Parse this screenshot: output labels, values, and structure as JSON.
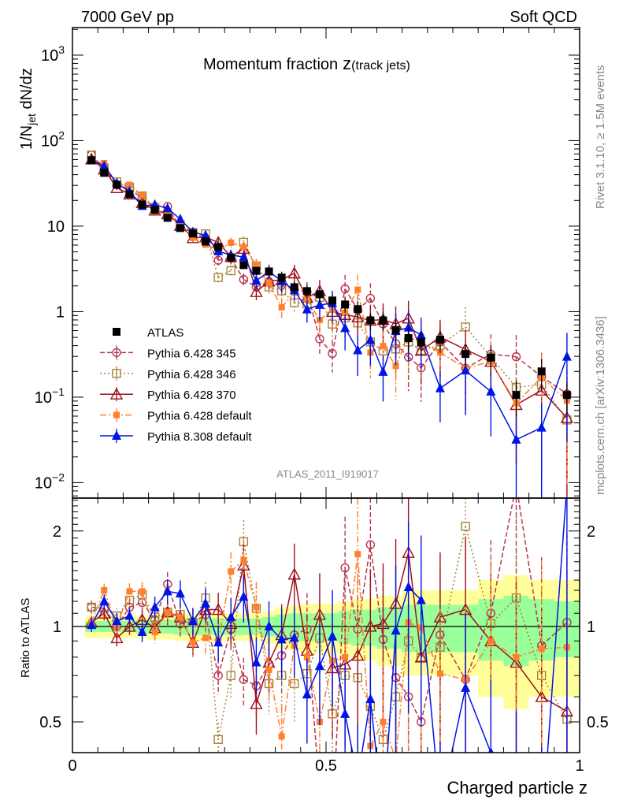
{
  "header": {
    "left": "7000 GeV pp",
    "right": "Soft QCD"
  },
  "side": {
    "rivet": "Rivet 3.1.10, ≥ 1.5M events",
    "mcplots": "mcplots.cern.ch [arXiv:1306.3436]"
  },
  "chart_data": {
    "type": "scatter",
    "title": "Momentum fraction",
    "title_var": "z",
    "title_sub": "(track jets)",
    "analysis": "ATLAS_2011_I919017",
    "xlabel": "Charged particle z",
    "ylabel_main": "1/N",
    "ylabel_sub": "jet",
    "ylabel_rest": " dN/dz",
    "ylabel_ratio": "Ratio to ATLAS",
    "xlim": [
      0,
      1
    ],
    "ylim_main": [
      0.0066,
      2100
    ],
    "yscale_main": "log",
    "ylim_ratio": [
      0.4,
      2.54
    ],
    "yscale_ratio": "log",
    "x_ticks": [
      "0",
      "0.5",
      "1"
    ],
    "y_ticks_main": [
      {
        "base": "10",
        "exp": "3"
      },
      {
        "base": "10",
        "exp": "2"
      },
      {
        "base": "10",
        "exp": ""
      },
      {
        "base": "1",
        "exp": ""
      },
      {
        "base": "10",
        "exp": "−1"
      },
      {
        "base": "10",
        "exp": "−2"
      }
    ],
    "y_ticks_ratio": [
      "2",
      "1",
      "0.5"
    ],
    "legend_position": "left-center",
    "x": [
      0.0375,
      0.0625,
      0.0875,
      0.1125,
      0.1375,
      0.1625,
      0.1875,
      0.2125,
      0.2375,
      0.2625,
      0.2875,
      0.3125,
      0.3375,
      0.3625,
      0.3875,
      0.4125,
      0.4375,
      0.4625,
      0.4875,
      0.5125,
      0.5375,
      0.5625,
      0.5875,
      0.6125,
      0.6375,
      0.6625,
      0.6875,
      0.725,
      0.775,
      0.825,
      0.875,
      0.925,
      0.975
    ],
    "data": {
      "name": "ATLAS",
      "values": [
        59,
        42,
        30.5,
        23.6,
        17.9,
        15.5,
        12.5,
        9.5,
        8.2,
        6.6,
        5.7,
        4.3,
        3.5,
        3.0,
        2.95,
        2.5,
        1.93,
        1.74,
        1.6,
        1.35,
        1.21,
        1.07,
        0.79,
        0.79,
        0.61,
        0.49,
        0.44,
        0.47,
        0.32,
        0.29,
        0.106,
        0.2,
        0.106
      ],
      "rel_unc_total": [
        0.08,
        0.08,
        0.08,
        0.08,
        0.08,
        0.09,
        0.09,
        0.1,
        0.1,
        0.1,
        0.1,
        0.1,
        0.1,
        0.1,
        0.12,
        0.15,
        0.16,
        0.18,
        0.18,
        0.18,
        0.2,
        0.22,
        0.22,
        0.25,
        0.25,
        0.3,
        0.3,
        0.3,
        0.3,
        0.4,
        0.45,
        0.4,
        0.4
      ],
      "rel_unc_stat": [
        0.04,
        0.04,
        0.04,
        0.04,
        0.05,
        0.05,
        0.05,
        0.06,
        0.06,
        0.06,
        0.06,
        0.06,
        0.06,
        0.06,
        0.07,
        0.09,
        0.1,
        0.1,
        0.1,
        0.1,
        0.12,
        0.13,
        0.13,
        0.15,
        0.15,
        0.17,
        0.17,
        0.17,
        0.17,
        0.22,
        0.25,
        0.22,
        0.2
      ],
      "color": "#000000"
    },
    "model_rel_err": [
      0.05,
      0.05,
      0.06,
      0.06,
      0.07,
      0.08,
      0.09,
      0.1,
      0.1,
      0.12,
      0.13,
      0.15,
      0.17,
      0.2,
      0.2,
      0.25,
      0.25,
      0.3,
      0.35,
      0.4,
      0.45,
      0.5,
      0.5,
      0.55,
      0.6,
      0.6,
      0.6,
      0.6,
      0.7,
      0.7,
      0.8,
      0.9,
      0.9
    ],
    "series": [
      {
        "name": "Pythia 6.428 345",
        "color": "#b8344f",
        "marker": "open-circle",
        "line": "dashed",
        "ratio": [
          1.15,
          1.14,
          1.0,
          1.15,
          1.19,
          1.05,
          1.36,
          1.02,
          1.03,
          1.09,
          0.7,
          0.98,
          0.68,
          0.65,
          0.76,
          0.81,
          0.94,
          0.98,
          0.3,
          0.24,
          1.53,
          0.98,
          1.81,
          0.91,
          0.69,
          0.6,
          0.5,
          0.94,
          0.68,
          1.1,
          2.8,
          0.87,
          1.03
        ]
      },
      {
        "name": "Pythia 6.428 346",
        "color": "#a8843e",
        "marker": "open-square",
        "line": "dotted",
        "ratio": [
          1.15,
          1.14,
          1.08,
          1.21,
          1.26,
          1.07,
          1.11,
          1.09,
          1.03,
          1.23,
          0.44,
          0.7,
          1.85,
          1.14,
          0.66,
          0.7,
          0.66,
          0.71,
          0.92,
          0.53,
          0.7,
          0.69,
          0.56,
          0.44,
          0.6,
          0.9,
          0.8,
          0.86,
          2.07,
          1.02,
          1.23,
          0.7,
          0.51
        ]
      },
      {
        "name": "Pythia 6.428 370",
        "color": "#a0101e",
        "marker": "open-triangle",
        "line": "solid",
        "ratio": [
          1.03,
          1.1,
          0.92,
          1.0,
          1.05,
          0.99,
          1.11,
          1.07,
          0.89,
          1.13,
          1.13,
          1.02,
          1.56,
          0.57,
          0.77,
          0.94,
          1.46,
          0.84,
          1.09,
          0.74,
          0.76,
          0.81,
          1.0,
          1.02,
          1.18,
          1.71,
          0.8,
          1.07,
          1.13,
          0.9,
          0.77,
          0.6,
          0.54
        ]
      },
      {
        "name": "Pythia 6.428 default",
        "color": "#ff7f2a",
        "marker": "filled-square",
        "line": "dashdot",
        "ratio": [
          1.03,
          1.3,
          1.0,
          1.29,
          1.29,
          0.96,
          1.11,
          1.07,
          0.89,
          0.92,
          0.9,
          1.49,
          1.62,
          1.15,
          0.73,
          0.45,
          0.87,
          0.8,
          0.5,
          0.78,
          0.8,
          1.69,
          0.42,
          0.5,
          0.38,
          1.03,
          0.99,
          0.71,
          0.68,
          0.9,
          0.8,
          0.85,
          0.86
        ]
      },
      {
        "name": "Pythia 8.308 default",
        "color": "#0014e6",
        "marker": "filled-triangle",
        "line": "solid",
        "ratio": [
          1.01,
          1.2,
          1.04,
          1.08,
          0.96,
          1.15,
          1.29,
          1.27,
          1.04,
          1.18,
          0.89,
          1.07,
          1.24,
          0.77,
          1.0,
          0.91,
          0.92,
          0.61,
          0.75,
          0.93,
          0.53,
          0.33,
          0.59,
          0.25,
          0.97,
          1.33,
          1.21,
          0.27,
          0.64,
          0.4,
          0.3,
          0.22,
          2.8
        ]
      }
    ],
    "band_colors": {
      "total": "#ffff99",
      "stat": "#99ff99"
    }
  }
}
